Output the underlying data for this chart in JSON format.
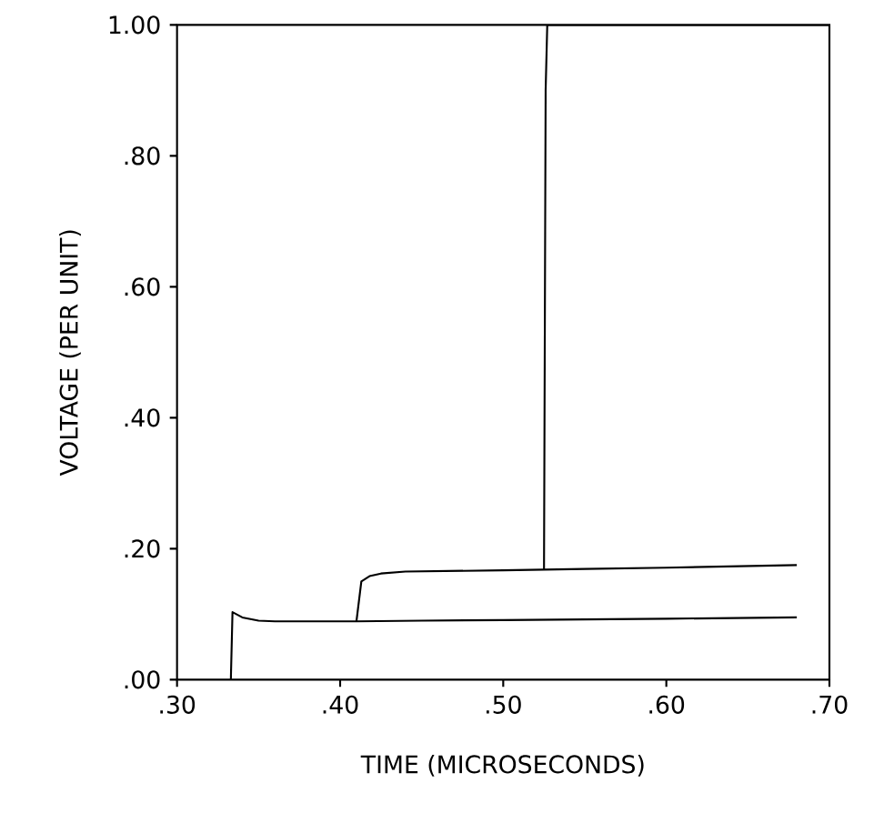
{
  "chart_data": {
    "type": "line",
    "xlabel": "TIME   (MICROSECONDS)",
    "ylabel": "VOLTAGE (PER UNIT)",
    "xlim": [
      0.3,
      0.7
    ],
    "ylim": [
      0,
      1
    ],
    "xticks": [
      {
        "value": 0.3,
        "label": ".30"
      },
      {
        "value": 0.4,
        "label": ".40"
      },
      {
        "value": 0.5,
        "label": ".50"
      },
      {
        "value": 0.6,
        "label": ".60"
      },
      {
        "value": 0.7,
        "label": ".70"
      }
    ],
    "yticks": [
      {
        "value": 0,
        "label": ".00"
      },
      {
        "value": 0.2,
        "label": ".20"
      },
      {
        "value": 0.4,
        "label": ".40"
      },
      {
        "value": 0.6,
        "label": ".60"
      },
      {
        "value": 0.8,
        "label": ".80"
      },
      {
        "value": 1,
        "label": "1.00"
      }
    ],
    "series": [
      {
        "color": "#000000",
        "x": [
          0.333,
          0.334,
          0.34,
          0.35,
          0.36,
          0.38,
          0.41,
          0.45,
          0.5,
          0.55,
          0.6,
          0.68
        ],
        "values": [
          0,
          0.103,
          0.095,
          0.09,
          0.089,
          0.089,
          0.089,
          0.09,
          0.091,
          0.092,
          0.093,
          0.095
        ]
      },
      {
        "color": "#000000",
        "x": [
          0.41,
          0.413,
          0.418,
          0.425,
          0.44,
          0.47,
          0.5,
          0.55,
          0.6,
          0.68
        ],
        "values": [
          0.089,
          0.15,
          0.158,
          0.162,
          0.165,
          0.166,
          0.167,
          0.169,
          0.171,
          0.175
        ]
      },
      {
        "color": "#000000",
        "x": [
          0.525,
          0.526,
          0.527,
          0.6,
          0.7
        ],
        "values": [
          0.167,
          0.9,
          1.0,
          1.0,
          1.0
        ]
      }
    ],
    "grid": false,
    "marker": "none",
    "line_style": "solid"
  }
}
